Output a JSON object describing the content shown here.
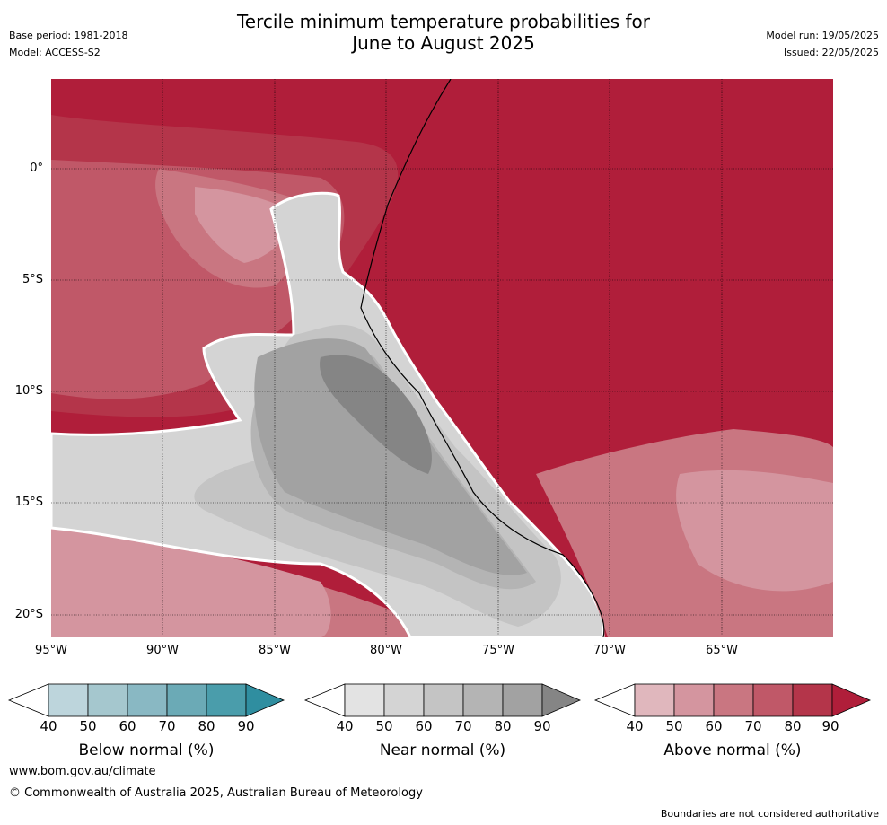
{
  "header": {
    "title_line1": "Tercile minimum temperature probabilities for",
    "title_line2": "June to August 2025",
    "base_period": "Base period: 1981-2018",
    "model": "Model: ACCESS-S2",
    "model_run": "Model run: 19/05/2025",
    "issued": "Issued: 22/05/2025"
  },
  "map": {
    "lat_labels": [
      "0°",
      "5°S",
      "10°S",
      "15°S",
      "20°S"
    ],
    "lon_labels": [
      "95°W",
      "90°W",
      "85°W",
      "80°W",
      "75°W",
      "70°W",
      "65°W"
    ]
  },
  "colorbars": {
    "below": {
      "label": "Below normal (%)",
      "ticks": [
        "40",
        "50",
        "60",
        "70",
        "80",
        "90"
      ],
      "colors": [
        "#bdd5dc",
        "#a5c7ce",
        "#89b8c3",
        "#6baab6",
        "#4a9dab",
        "#2f8ea0"
      ]
    },
    "near": {
      "label": "Near normal (%)",
      "ticks": [
        "40",
        "50",
        "60",
        "70",
        "80",
        "90"
      ],
      "colors": [
        "#e3e3e3",
        "#d4d4d4",
        "#c4c4c4",
        "#b4b4b4",
        "#a2a2a2",
        "#858585"
      ]
    },
    "above": {
      "label": "Above normal (%)",
      "ticks": [
        "40",
        "50",
        "60",
        "70",
        "80",
        "90"
      ],
      "colors": [
        "#e0b7bd",
        "#d4959f",
        "#c97681",
        "#c05868",
        "#b4354a",
        "#b01e3a"
      ]
    }
  },
  "footer": {
    "website": "www.bom.gov.au/climate",
    "copyright": "© Commonwealth of Australia 2025, Australian Bureau of Meteorology",
    "disclaimer": "Boundaries are not considered authoritative"
  }
}
